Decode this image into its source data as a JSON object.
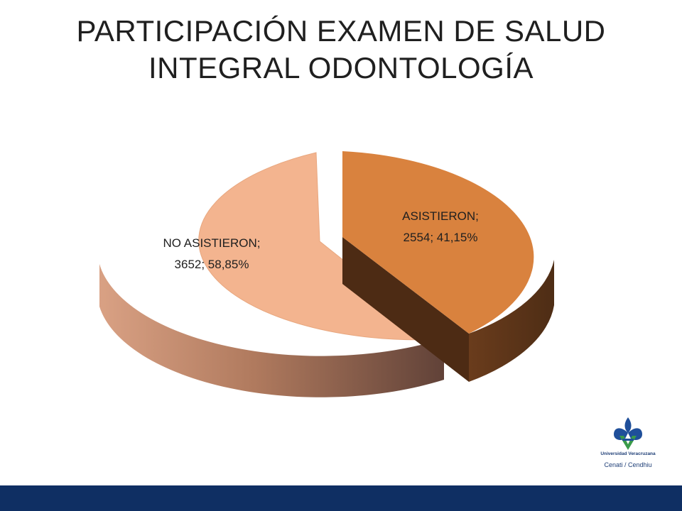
{
  "title_lines": [
    "PARTICIPACIÓN EXAMEN DE SALUD",
    "INTEGRAL ODONTOLOGÍA"
  ],
  "chart_data": {
    "type": "pie",
    "title": "PARTICIPACIÓN EXAMEN DE SALUD INTEGRAL ODONTOLOGÍA",
    "style": "3d-exploded",
    "slices": [
      {
        "name": "ASISTIERON",
        "value": 2554,
        "percent": 41.15,
        "label_line1": "ASISTIERON;",
        "label_line2": "2554; 41,15%",
        "color": "#d9823e"
      },
      {
        "name": "NO ASISTIERON",
        "value": 3652,
        "percent": 58.85,
        "label_line1": "NO ASISTIERON;",
        "label_line2": "3652; 58,85%",
        "color": "#f2b48e"
      }
    ]
  },
  "logo": {
    "line1": "Universidad Veracruzana",
    "line2": "Cenati / Cendhiu"
  },
  "colors": {
    "footer_bar": "#0f2f63",
    "asistieron_side": "#5a341a",
    "no_asistieron_side_dark": "#6a4a3a",
    "no_asistieron_side_light": "#d8a080"
  }
}
